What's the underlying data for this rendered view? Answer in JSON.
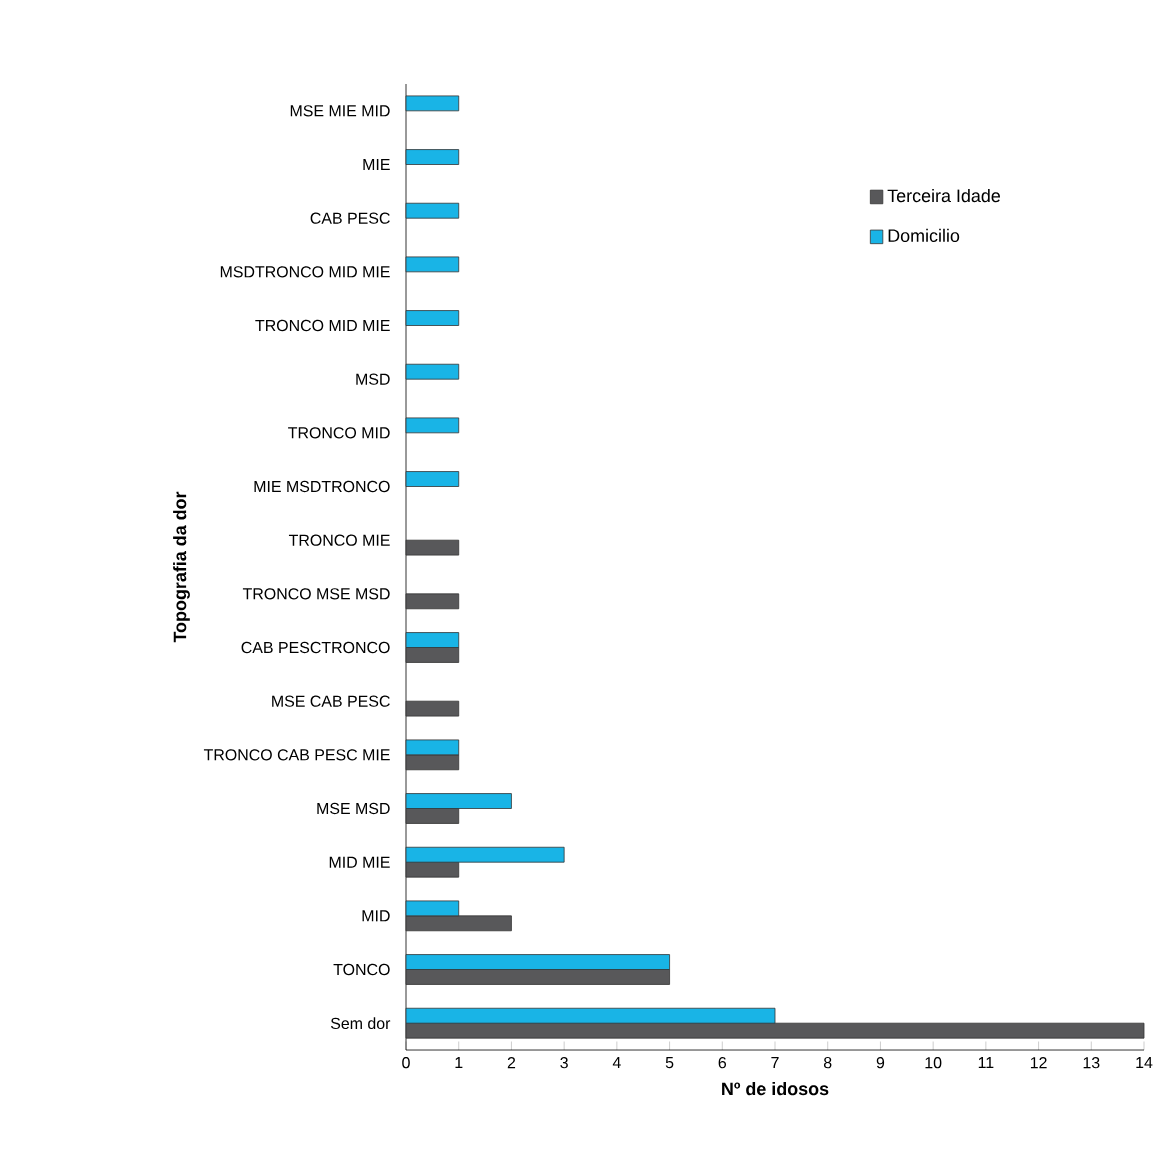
{
  "chart_data": {
    "type": "bar",
    "orientation": "horizontal",
    "xlabel": "Nº de idosos",
    "ylabel": "Topografia da dor",
    "categories": [
      "MSE MIE MID",
      "MIE",
      "CAB PESC",
      "MSDTRONCO MID MIE",
      "TRONCO MID MIE",
      "MSD",
      "TRONCO MID",
      "MIE MSDTRONCO",
      "TRONCO MIE",
      "TRONCO MSE MSD",
      "CAB PESCTRONCO",
      "MSE CAB PESC",
      "TRONCO CAB PESC MIE",
      "MSE MSD",
      "MID MIE",
      "MID",
      "TONCO",
      "Sem dor"
    ],
    "series": [
      {
        "name": "Terceira Idade",
        "color": "#58585a",
        "values": [
          null,
          null,
          null,
          null,
          null,
          null,
          null,
          null,
          1,
          1,
          1,
          1,
          1,
          1,
          1,
          2,
          5,
          14
        ]
      },
      {
        "name": "Domicilio",
        "color": "#19b4e6",
        "values": [
          1,
          1,
          1,
          1,
          1,
          1,
          1,
          1,
          null,
          null,
          1,
          null,
          1,
          2,
          3,
          1,
          5,
          7
        ]
      }
    ],
    "xlim": [
      0,
      14
    ],
    "xticks": [
      0,
      1,
      2,
      3,
      4,
      5,
      6,
      7,
      8,
      9,
      10,
      11,
      12,
      13,
      14
    ],
    "legend": "top right",
    "grid": false
  }
}
